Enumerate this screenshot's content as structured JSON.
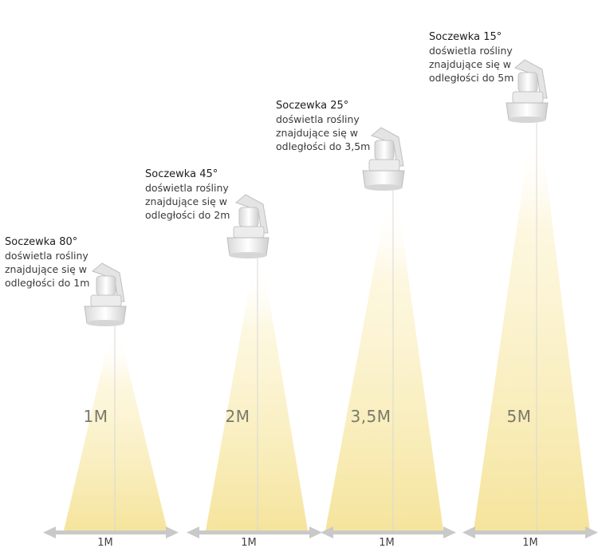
{
  "lamps": [
    {
      "title": "Soczewka 80°",
      "desc1": "doświetla rośliny",
      "desc2": "znajdujące się w",
      "desc3": "odległości do 1m",
      "distance": "1M",
      "width_label": "1M"
    },
    {
      "title": "Soczewka 45°",
      "desc1": "doświetla rośliny",
      "desc2": "znajdujące się w",
      "desc3": "odległości do 2m",
      "distance": "2M",
      "width_label": "1M"
    },
    {
      "title": "Soczewka 25°",
      "desc1": "doświetla rośliny",
      "desc2": "znajdujące się w",
      "desc3": "odległości do 3,5m",
      "distance": "3,5M",
      "width_label": "1M"
    },
    {
      "title": "Soczewka 15°",
      "desc1": "doświetla rośliny",
      "desc2": "znajdujące się w",
      "desc3": "odległości do 5m",
      "distance": "5M",
      "width_label": "1M"
    }
  ],
  "colors": {
    "beam": "#f6e7a4",
    "arrow": "#c8c8c8",
    "lamp": "#f2f2f2",
    "lamp_shade": "#bdbdbd"
  }
}
